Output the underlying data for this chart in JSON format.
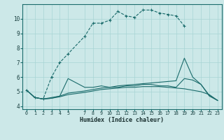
{
  "xlabel": "Humidex (Indice chaleur)",
  "bg_color": "#cce8e8",
  "grid_color": "#a8d4d4",
  "line_color": "#1a6b6b",
  "xlim": [
    -0.5,
    23.5
  ],
  "ylim": [
    3.8,
    11.0
  ],
  "yticks": [
    4,
    5,
    6,
    7,
    8,
    9,
    10
  ],
  "xticks": [
    0,
    1,
    2,
    3,
    4,
    5,
    7,
    8,
    9,
    10,
    11,
    12,
    13,
    14,
    15,
    16,
    17,
    18,
    19,
    20,
    21,
    22,
    23
  ],
  "curve_upper_x": [
    0,
    1,
    2,
    3,
    4,
    5,
    7,
    8,
    9,
    10,
    11,
    12,
    13,
    14,
    15,
    16,
    17,
    18,
    19
  ],
  "curve_upper_y": [
    5.1,
    4.6,
    4.5,
    6.0,
    7.0,
    7.6,
    8.8,
    9.7,
    9.7,
    9.9,
    10.5,
    10.2,
    10.1,
    10.6,
    10.6,
    10.4,
    10.3,
    10.2,
    9.5
  ],
  "curve_mid_x": [
    0,
    1,
    2,
    3,
    4,
    5,
    7,
    8,
    9,
    10,
    11,
    12,
    13,
    14,
    15,
    16,
    17,
    18,
    19,
    20,
    21,
    22,
    23
  ],
  "curve_mid_y": [
    5.1,
    4.6,
    4.5,
    4.55,
    4.7,
    5.9,
    5.3,
    5.3,
    5.4,
    5.3,
    5.3,
    5.4,
    5.4,
    5.5,
    5.5,
    5.4,
    5.4,
    5.3,
    5.9,
    5.8,
    5.5,
    4.75,
    4.4
  ],
  "curve_diag_x": [
    0,
    1,
    2,
    3,
    4,
    5,
    7,
    8,
    9,
    10,
    11,
    12,
    13,
    14,
    15,
    16,
    17,
    18,
    19,
    20,
    21,
    22,
    23
  ],
  "curve_diag_y": [
    5.1,
    4.6,
    4.5,
    4.6,
    4.7,
    4.9,
    5.05,
    5.15,
    5.25,
    5.3,
    5.4,
    5.45,
    5.5,
    5.55,
    5.6,
    5.65,
    5.7,
    5.75,
    7.3,
    6.0,
    5.5,
    4.7,
    4.4
  ],
  "curve_bot_x": [
    0,
    1,
    2,
    3,
    4,
    5,
    7,
    8,
    9,
    10,
    11,
    12,
    13,
    14,
    15,
    16,
    17,
    18,
    19,
    20,
    21,
    22,
    23
  ],
  "curve_bot_y": [
    5.1,
    4.6,
    4.5,
    4.55,
    4.65,
    4.8,
    4.95,
    5.05,
    5.15,
    5.2,
    5.25,
    5.3,
    5.3,
    5.35,
    5.35,
    5.35,
    5.3,
    5.25,
    5.2,
    5.1,
    5.0,
    4.8,
    4.4
  ]
}
